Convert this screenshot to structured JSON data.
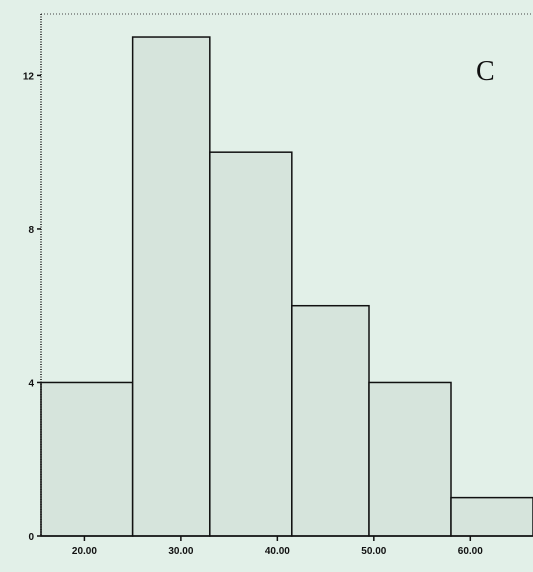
{
  "chart_data": {
    "type": "bar",
    "histogram": true,
    "panel_label": "C",
    "bins": [
      {
        "start": 15.5,
        "end": 25.0,
        "count": 4
      },
      {
        "start": 25.0,
        "end": 33.0,
        "count": 13
      },
      {
        "start": 33.0,
        "end": 41.5,
        "count": 10
      },
      {
        "start": 41.5,
        "end": 49.5,
        "count": 6
      },
      {
        "start": 49.5,
        "end": 58.0,
        "count": 4
      },
      {
        "start": 58.0,
        "end": 66.5,
        "count": 1
      }
    ],
    "x_ticks": [
      {
        "value": 20,
        "label": "20.00"
      },
      {
        "value": 30,
        "label": "30.00"
      },
      {
        "value": 40,
        "label": "40.00"
      },
      {
        "value": 50,
        "label": "50.00"
      },
      {
        "value": 60,
        "label": "60.00"
      }
    ],
    "y_ticks": [
      {
        "value": 0,
        "label": "0"
      },
      {
        "value": 4,
        "label": "4"
      },
      {
        "value": 8,
        "label": "8"
      },
      {
        "value": 12,
        "label": "12"
      }
    ],
    "xlim": [
      15.5,
      66.5
    ],
    "ylim": [
      0,
      13.6
    ],
    "xlabel": "",
    "ylabel": "",
    "colors": {
      "bar_fill": "#d6e4dc",
      "bar_stroke": "#111111",
      "background": "#e2f0e8"
    }
  }
}
